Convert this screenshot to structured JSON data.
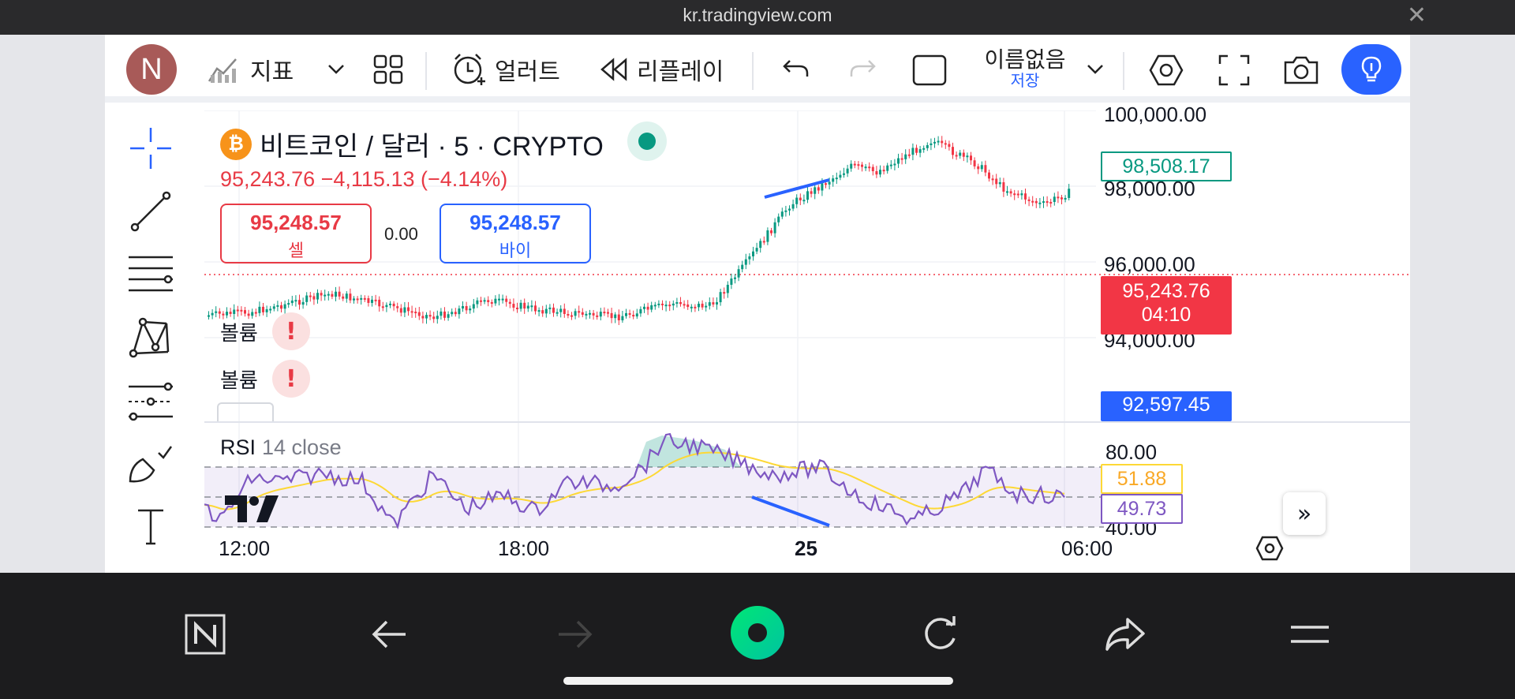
{
  "browser": {
    "url": "kr.tradingview.com",
    "close": "✕"
  },
  "toolbar": {
    "avatar_letter": "N",
    "indicators_label": "지표",
    "alert_label": "얼러트",
    "replay_label": "리플레이",
    "layout_name": "이름없음",
    "save_label": "저장"
  },
  "legend": {
    "symbol": "비트코인 / 달러 · 5 · CRYPTO",
    "btc_glyph": "₿",
    "quote": "95,243.76  −4,115.13 (−4.14%)",
    "sell_price": "95,248.57",
    "sell_label": "셀",
    "spread": "0.00",
    "buy_price": "95,248.57",
    "buy_label": "바이",
    "volume_label_1": "볼륨",
    "volume_label_2": "볼륨",
    "warn_glyph": "!"
  },
  "rsi": {
    "name": "RSI",
    "params": "14 close"
  },
  "price_axis": {
    "labels": [
      "100,000.00",
      "98,000.00",
      "96,000.00",
      "94,000.00"
    ],
    "last_tag": "98,508.17",
    "current_price": "95,243.76",
    "countdown": "04:10",
    "low_tag": "92,597.45"
  },
  "rsi_axis": {
    "labels": [
      "80.00",
      "40.00"
    ],
    "ma_value": "51.88",
    "rsi_value": "49.73"
  },
  "time_axis": {
    "labels": [
      "12:00",
      "18:00",
      "25",
      "06:00"
    ]
  },
  "expand_glyph": "»",
  "colors": {
    "up": "#089981",
    "down": "#f23645",
    "accent": "#2962ff",
    "rsi": "#7e57c2",
    "rsi_ma": "#fdd835"
  }
}
